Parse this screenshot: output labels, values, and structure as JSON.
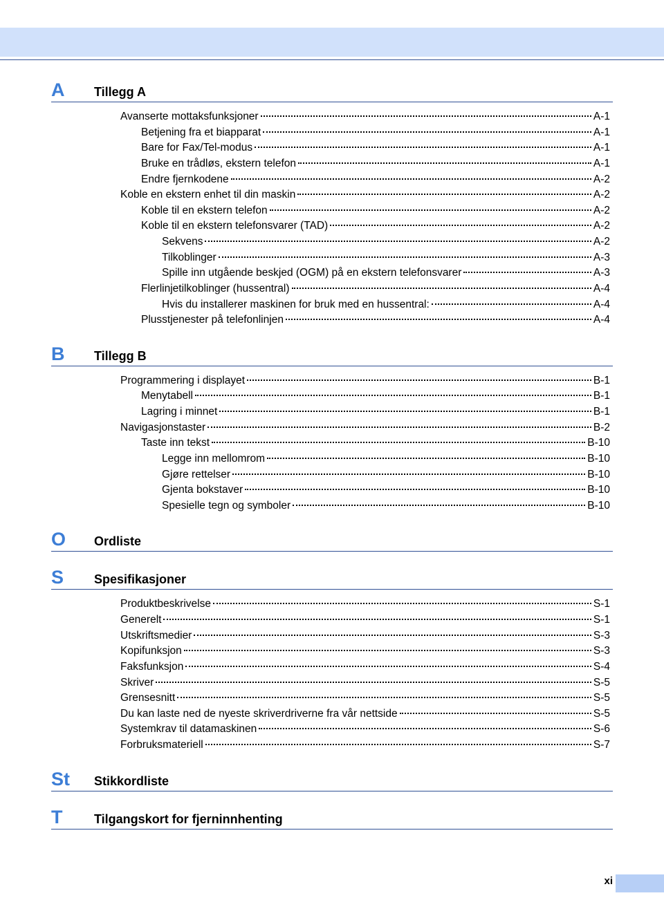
{
  "page_number": "xi",
  "colors": {
    "band": "#d1e1fb",
    "letter": "#3d7ed6",
    "divider": "#2f4f94",
    "accent": "#b7cff6"
  },
  "sections": [
    {
      "letter": "A",
      "title": "Tillegg A",
      "entries": [
        {
          "label": "Avanserte mottaksfunksjoner",
          "page": "A-1",
          "indent": 0
        },
        {
          "label": "Betjening fra et biapparat",
          "page": "A-1",
          "indent": 1
        },
        {
          "label": "Bare for Fax/Tel-modus",
          "page": "A-1",
          "indent": 1
        },
        {
          "label": "Bruke en trådløs, ekstern telefon",
          "page": "A-1",
          "indent": 1
        },
        {
          "label": "Endre fjernkodene",
          "page": "A-2",
          "indent": 1
        },
        {
          "label": "Koble en ekstern enhet til din maskin",
          "page": "A-2",
          "indent": 0
        },
        {
          "label": "Koble til en ekstern telefon",
          "page": "A-2",
          "indent": 1
        },
        {
          "label": "Koble til en ekstern telefonsvarer (TAD)",
          "page": "A-2",
          "indent": 1
        },
        {
          "label": "Sekvens",
          "page": "A-2",
          "indent": 2
        },
        {
          "label": "Tilkoblinger",
          "page": "A-3",
          "indent": 2
        },
        {
          "label": "Spille inn utgående beskjed (OGM) på en ekstern telefonsvarer",
          "page": "A-3",
          "indent": 2
        },
        {
          "label": "Flerlinjetilkoblinger (hussentral)",
          "page": "A-4",
          "indent": 1
        },
        {
          "label": "Hvis du installerer maskinen for bruk med en hussentral:",
          "page": "A-4",
          "indent": 2
        },
        {
          "label": "Plusstjenester på telefonlinjen",
          "page": "A-4",
          "indent": 1
        }
      ]
    },
    {
      "letter": "B",
      "title": "Tillegg B",
      "entries": [
        {
          "label": "Programmering i displayet",
          "page": "B-1",
          "indent": 0
        },
        {
          "label": "Menytabell",
          "page": "B-1",
          "indent": 1
        },
        {
          "label": "Lagring i minnet",
          "page": "B-1",
          "indent": 1
        },
        {
          "label": "Navigasjonstaster",
          "page": "B-2",
          "indent": 0
        },
        {
          "label": "Taste inn tekst",
          "page": "B-10",
          "indent": 1
        },
        {
          "label": "Legge inn mellomrom",
          "page": "B-10",
          "indent": 2
        },
        {
          "label": "Gjøre rettelser",
          "page": "B-10",
          "indent": 2
        },
        {
          "label": "Gjenta bokstaver",
          "page": "B-10",
          "indent": 2
        },
        {
          "label": "Spesielle tegn og symboler",
          "page": "B-10",
          "indent": 2
        }
      ]
    },
    {
      "letter": "O",
      "title": "Ordliste",
      "entries": []
    },
    {
      "letter": "S",
      "title": "Spesifikasjoner",
      "entries": [
        {
          "label": "Produktbeskrivelse",
          "page": "S-1",
          "indent": 0
        },
        {
          "label": "Generelt",
          "page": "S-1",
          "indent": 0
        },
        {
          "label": "Utskriftsmedier",
          "page": "S-3",
          "indent": 0
        },
        {
          "label": "Kopifunksjon",
          "page": "S-3",
          "indent": 0
        },
        {
          "label": "Faksfunksjon",
          "page": "S-4",
          "indent": 0
        },
        {
          "label": "Skriver",
          "page": "S-5",
          "indent": 0
        },
        {
          "label": "Grensesnitt",
          "page": "S-5",
          "indent": 0
        },
        {
          "label": "Du kan laste ned de nyeste skriverdriverne fra vår nettside",
          "page": "S-5",
          "indent": 0
        },
        {
          "label": "Systemkrav til datamaskinen",
          "page": "S-6",
          "indent": 0
        },
        {
          "label": "Forbruksmateriell",
          "page": "S-7",
          "indent": 0
        }
      ]
    },
    {
      "letter": "St",
      "title": "Stikkordliste",
      "entries": []
    },
    {
      "letter": "T",
      "title": "Tilgangskort for fjerninnhenting",
      "entries": []
    }
  ]
}
